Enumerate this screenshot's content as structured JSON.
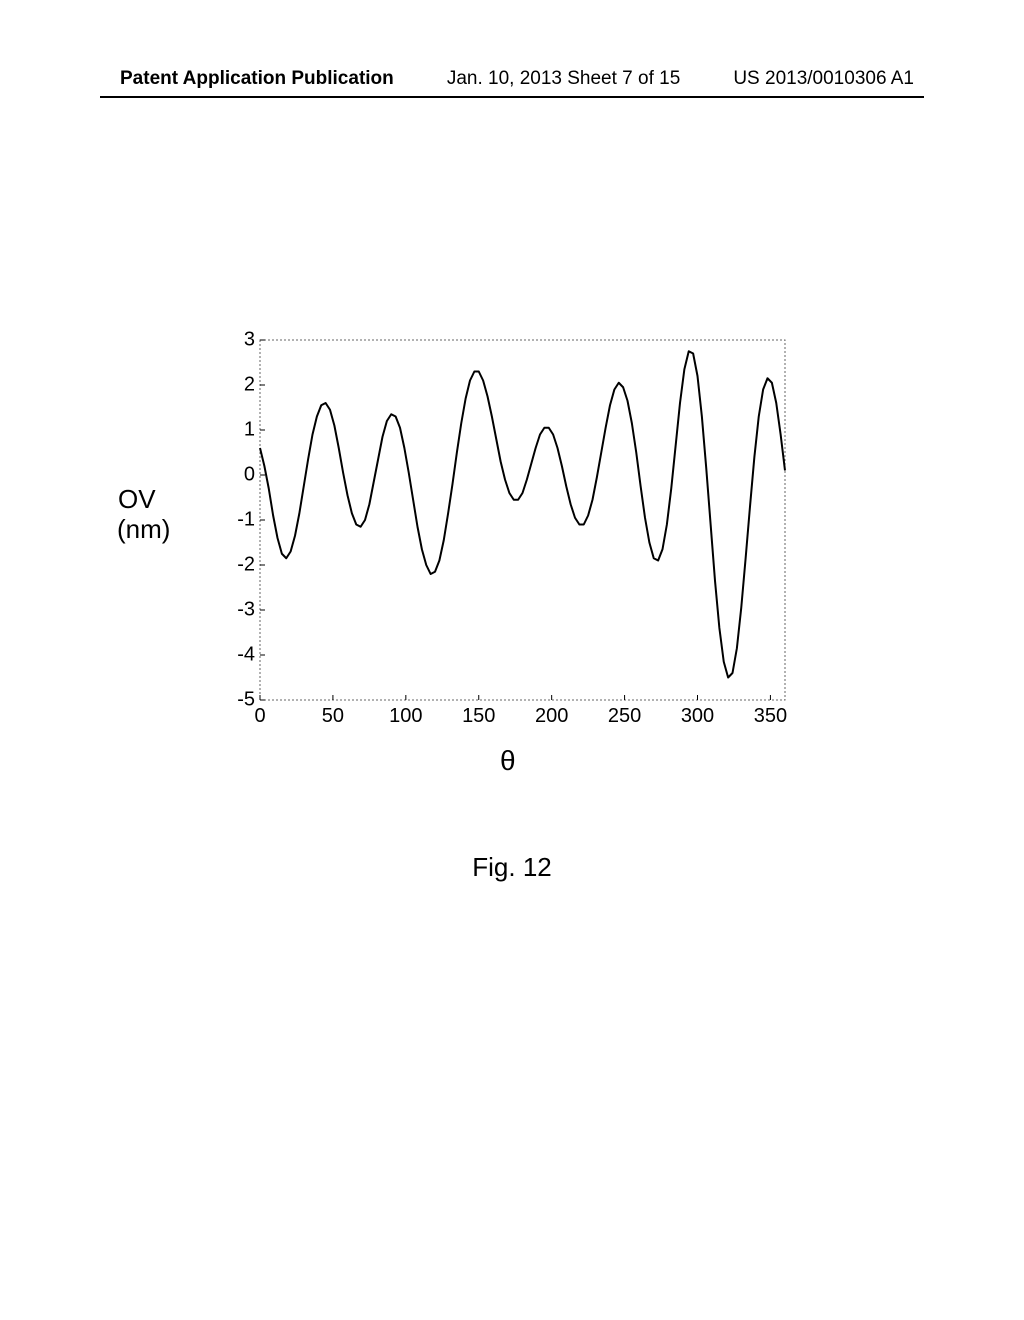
{
  "header": {
    "left": "Patent Application Publication",
    "center": "Jan. 10, 2013  Sheet 7 of 15",
    "right": "US 2013/0010306 A1"
  },
  "chart": {
    "type": "line",
    "y_label": "OV",
    "y_unit": "(nm)",
    "x_label": "θ",
    "caption": "Fig. 12",
    "xlim": [
      0,
      360
    ],
    "ylim": [
      -5,
      3
    ],
    "x_ticks": [
      0,
      50,
      100,
      150,
      200,
      250,
      300,
      350
    ],
    "y_ticks": [
      -5,
      -4,
      -3,
      -2,
      -1,
      0,
      1,
      2,
      3
    ],
    "line_color": "#000000",
    "line_width": 2,
    "background_color": "#ffffff",
    "border_color": "#666666",
    "grid_color": "#cccccc",
    "data_points": [
      [
        0,
        0.6
      ],
      [
        3,
        0.2
      ],
      [
        6,
        -0.3
      ],
      [
        9,
        -0.9
      ],
      [
        12,
        -1.4
      ],
      [
        15,
        -1.75
      ],
      [
        18,
        -1.85
      ],
      [
        21,
        -1.7
      ],
      [
        24,
        -1.35
      ],
      [
        27,
        -0.85
      ],
      [
        30,
        -0.25
      ],
      [
        33,
        0.35
      ],
      [
        36,
        0.9
      ],
      [
        39,
        1.3
      ],
      [
        42,
        1.55
      ],
      [
        45,
        1.6
      ],
      [
        48,
        1.45
      ],
      [
        51,
        1.1
      ],
      [
        54,
        0.6
      ],
      [
        57,
        0.05
      ],
      [
        60,
        -0.45
      ],
      [
        63,
        -0.85
      ],
      [
        66,
        -1.1
      ],
      [
        69,
        -1.15
      ],
      [
        72,
        -1.0
      ],
      [
        75,
        -0.65
      ],
      [
        78,
        -0.15
      ],
      [
        81,
        0.35
      ],
      [
        84,
        0.85
      ],
      [
        87,
        1.2
      ],
      [
        90,
        1.35
      ],
      [
        93,
        1.3
      ],
      [
        96,
        1.05
      ],
      [
        99,
        0.6
      ],
      [
        102,
        0.05
      ],
      [
        105,
        -0.55
      ],
      [
        108,
        -1.15
      ],
      [
        111,
        -1.65
      ],
      [
        114,
        -2.0
      ],
      [
        117,
        -2.2
      ],
      [
        120,
        -2.15
      ],
      [
        123,
        -1.9
      ],
      [
        126,
        -1.45
      ],
      [
        129,
        -0.85
      ],
      [
        132,
        -0.2
      ],
      [
        135,
        0.5
      ],
      [
        138,
        1.15
      ],
      [
        141,
        1.7
      ],
      [
        144,
        2.1
      ],
      [
        147,
        2.3
      ],
      [
        150,
        2.3
      ],
      [
        153,
        2.1
      ],
      [
        156,
        1.75
      ],
      [
        159,
        1.3
      ],
      [
        162,
        0.8
      ],
      [
        165,
        0.3
      ],
      [
        168,
        -0.1
      ],
      [
        171,
        -0.4
      ],
      [
        174,
        -0.55
      ],
      [
        177,
        -0.55
      ],
      [
        180,
        -0.4
      ],
      [
        183,
        -0.1
      ],
      [
        186,
        0.25
      ],
      [
        189,
        0.6
      ],
      [
        192,
        0.9
      ],
      [
        195,
        1.05
      ],
      [
        198,
        1.05
      ],
      [
        201,
        0.9
      ],
      [
        204,
        0.6
      ],
      [
        207,
        0.2
      ],
      [
        210,
        -0.25
      ],
      [
        213,
        -0.65
      ],
      [
        216,
        -0.95
      ],
      [
        219,
        -1.1
      ],
      [
        222,
        -1.1
      ],
      [
        225,
        -0.9
      ],
      [
        228,
        -0.55
      ],
      [
        231,
        -0.05
      ],
      [
        234,
        0.5
      ],
      [
        237,
        1.05
      ],
      [
        240,
        1.55
      ],
      [
        243,
        1.9
      ],
      [
        246,
        2.05
      ],
      [
        249,
        1.95
      ],
      [
        252,
        1.65
      ],
      [
        255,
        1.15
      ],
      [
        258,
        0.5
      ],
      [
        261,
        -0.25
      ],
      [
        264,
        -0.95
      ],
      [
        267,
        -1.5
      ],
      [
        270,
        -1.85
      ],
      [
        273,
        -1.9
      ],
      [
        276,
        -1.65
      ],
      [
        279,
        -1.1
      ],
      [
        282,
        -0.3
      ],
      [
        285,
        0.65
      ],
      [
        288,
        1.6
      ],
      [
        291,
        2.35
      ],
      [
        294,
        2.75
      ],
      [
        297,
        2.7
      ],
      [
        300,
        2.2
      ],
      [
        303,
        1.3
      ],
      [
        306,
        0.15
      ],
      [
        309,
        -1.1
      ],
      [
        312,
        -2.35
      ],
      [
        315,
        -3.4
      ],
      [
        318,
        -4.15
      ],
      [
        321,
        -4.5
      ],
      [
        324,
        -4.4
      ],
      [
        327,
        -3.85
      ],
      [
        330,
        -2.95
      ],
      [
        333,
        -1.85
      ],
      [
        336,
        -0.7
      ],
      [
        339,
        0.4
      ],
      [
        342,
        1.3
      ],
      [
        345,
        1.9
      ],
      [
        348,
        2.15
      ],
      [
        351,
        2.05
      ],
      [
        354,
        1.6
      ],
      [
        357,
        0.9
      ],
      [
        360,
        0.1
      ]
    ]
  }
}
